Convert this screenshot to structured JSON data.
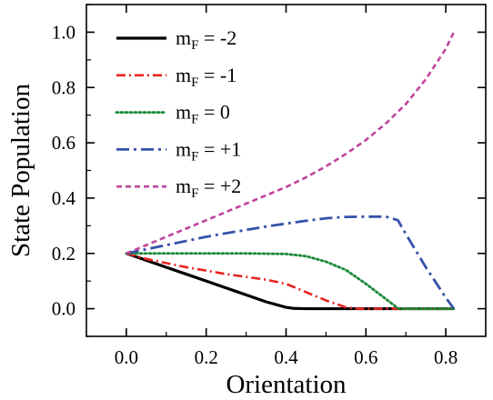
{
  "chart_data": {
    "type": "line",
    "xlabel": "Orientation",
    "ylabel": "State Population",
    "xlim": [
      -0.1,
      0.9
    ],
    "ylim": [
      -0.1,
      1.1
    ],
    "xticks": [
      0.0,
      0.2,
      0.4,
      0.6,
      0.8
    ],
    "xtick_labels": [
      "0.0",
      "0.2",
      "0.4",
      "0.6",
      "0.8"
    ],
    "yticks": [
      0.0,
      0.2,
      0.4,
      0.6,
      0.8,
      1.0
    ],
    "ytick_labels": [
      "0.0",
      "0.2",
      "0.4",
      "0.6",
      "0.8",
      "1.0"
    ],
    "grid": false,
    "legend_position": "top-left",
    "series": [
      {
        "name": "m_F = -2",
        "label_main": "m",
        "label_sub": "F",
        "label_value": " = -2",
        "color": "#000000",
        "style": "solid",
        "x": [
          0.0,
          0.05,
          0.1,
          0.15,
          0.2,
          0.25,
          0.3,
          0.35,
          0.4,
          0.42,
          0.45,
          0.5,
          0.6,
          0.7,
          0.82
        ],
        "y": [
          0.2,
          0.175,
          0.15,
          0.125,
          0.1,
          0.075,
          0.05,
          0.025,
          0.005,
          0.001,
          0.0,
          0.0,
          0.0,
          0.0,
          0.0
        ]
      },
      {
        "name": "m_F = -1",
        "label_main": "m",
        "label_sub": "F",
        "label_value": " = -1",
        "color": "#e8231f",
        "style": "dashdot",
        "x": [
          0.0,
          0.05,
          0.1,
          0.15,
          0.2,
          0.25,
          0.3,
          0.35,
          0.4,
          0.45,
          0.5,
          0.55,
          0.58,
          0.6,
          0.7,
          0.82
        ],
        "y": [
          0.2,
          0.18,
          0.165,
          0.15,
          0.138,
          0.125,
          0.115,
          0.105,
          0.09,
          0.06,
          0.03,
          0.005,
          0.0,
          0.0,
          0.0,
          0.0
        ]
      },
      {
        "name": "m_F = 0",
        "label_main": "m",
        "label_sub": "F",
        "label_value": " = 0",
        "color": "#1a8a3a",
        "style": "dotted",
        "x": [
          0.0,
          0.05,
          0.1,
          0.2,
          0.3,
          0.4,
          0.45,
          0.5,
          0.55,
          0.6,
          0.65,
          0.68,
          0.7,
          0.82
        ],
        "y": [
          0.2,
          0.2,
          0.2,
          0.2,
          0.2,
          0.198,
          0.19,
          0.17,
          0.14,
          0.09,
          0.035,
          0.002,
          0.0,
          0.0
        ]
      },
      {
        "name": "m_F = +1",
        "label_main": "m",
        "label_sub": "F",
        "label_value": " = +1",
        "color": "#3552a8",
        "style": "dashdotlong",
        "x": [
          0.0,
          0.05,
          0.1,
          0.15,
          0.2,
          0.25,
          0.3,
          0.35,
          0.4,
          0.45,
          0.5,
          0.55,
          0.6,
          0.65,
          0.68,
          0.7,
          0.75,
          0.8,
          0.82
        ],
        "y": [
          0.2,
          0.215,
          0.23,
          0.245,
          0.26,
          0.273,
          0.285,
          0.297,
          0.308,
          0.318,
          0.327,
          0.332,
          0.333,
          0.333,
          0.32,
          0.27,
          0.15,
          0.04,
          0.0
        ]
      },
      {
        "name": "m_F = +2",
        "label_main": "m",
        "label_sub": "F",
        "label_value": " = +2",
        "color": "#c0449d",
        "style": "dashed",
        "x": [
          0.0,
          0.05,
          0.1,
          0.15,
          0.2,
          0.25,
          0.3,
          0.35,
          0.4,
          0.45,
          0.5,
          0.55,
          0.6,
          0.65,
          0.7,
          0.75,
          0.8,
          0.82
        ],
        "y": [
          0.2,
          0.23,
          0.26,
          0.29,
          0.32,
          0.35,
          0.38,
          0.41,
          0.44,
          0.475,
          0.515,
          0.56,
          0.61,
          0.67,
          0.74,
          0.83,
          0.94,
          1.0
        ]
      }
    ]
  }
}
